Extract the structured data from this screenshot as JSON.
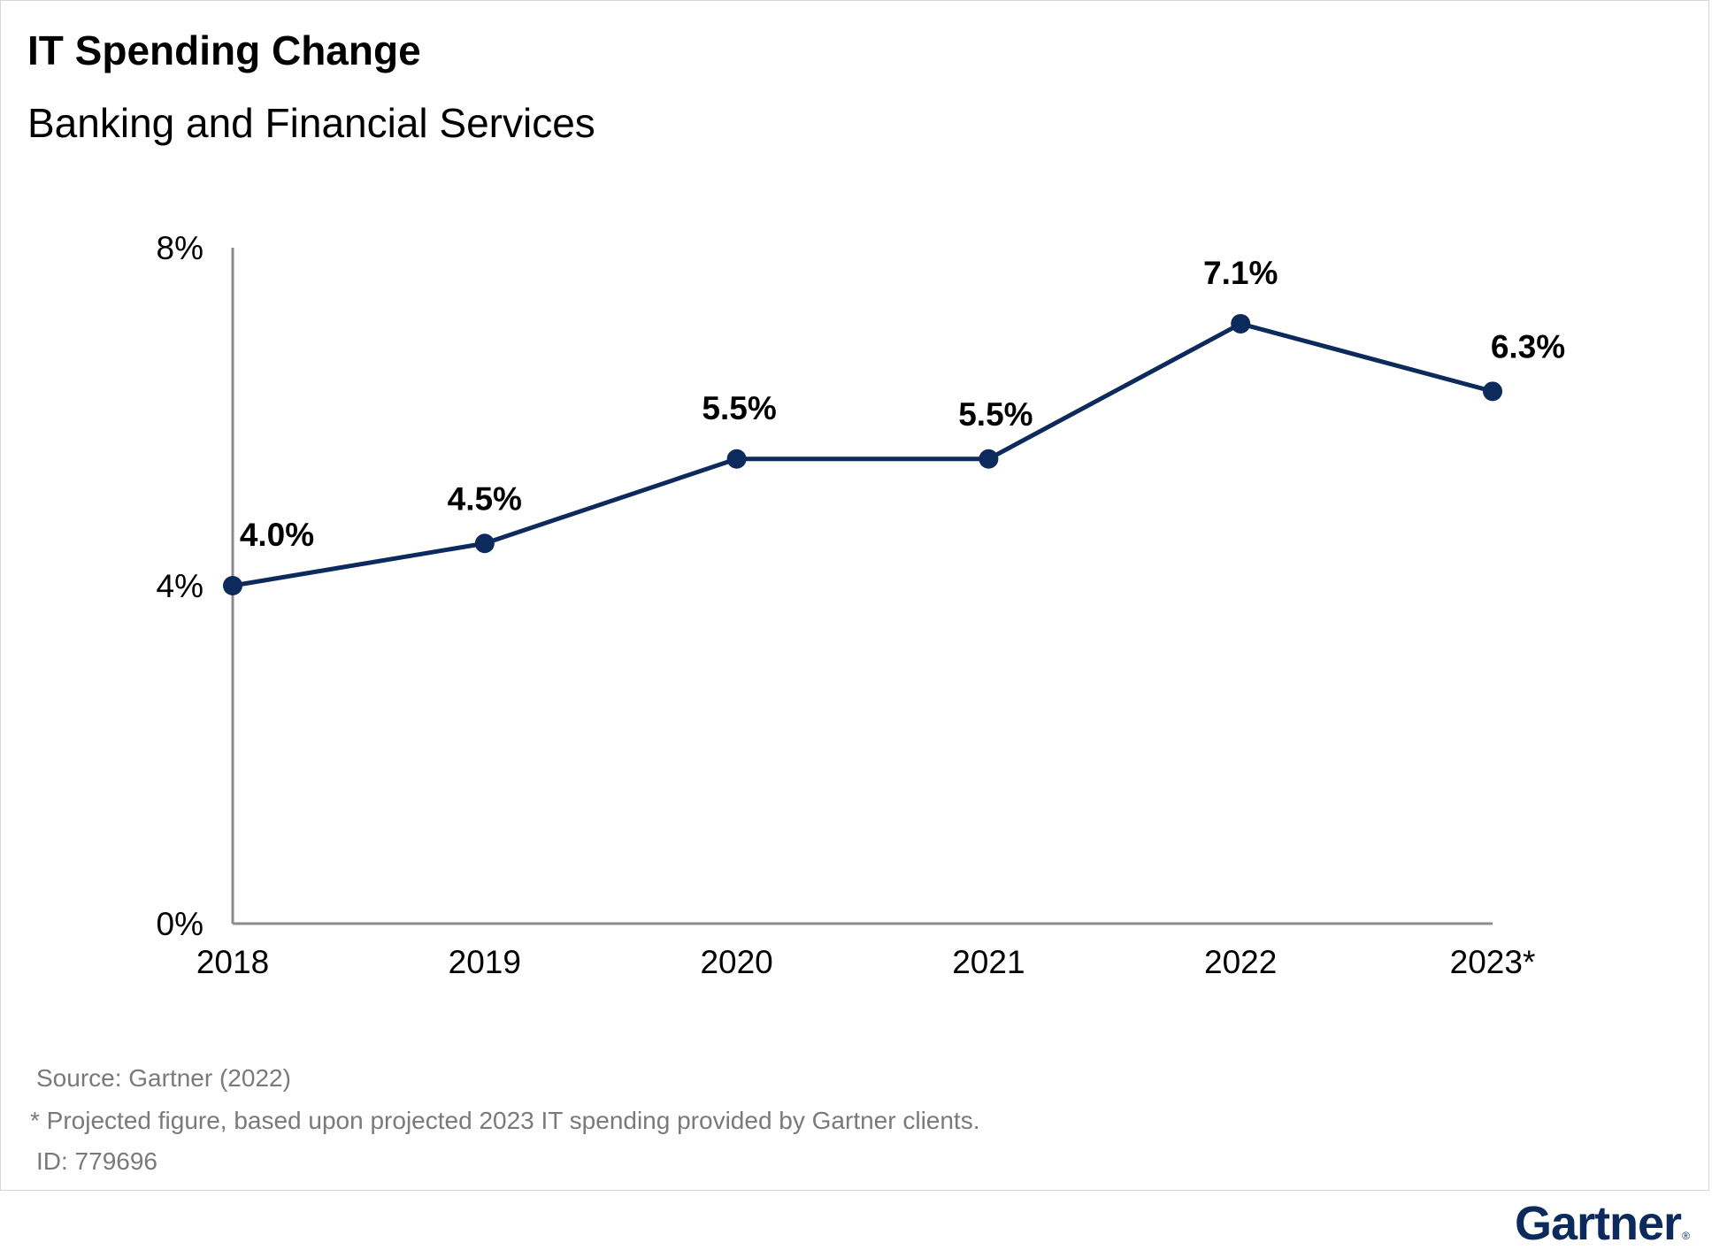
{
  "chart_data": {
    "type": "line",
    "title": "IT Spending Change",
    "subtitle": "Banking and Financial Services",
    "categories": [
      "2018",
      "2019",
      "2020",
      "2021",
      "2022",
      "2023*"
    ],
    "series": [
      {
        "values": [
          4.0,
          4.5,
          5.5,
          5.5,
          7.1,
          6.3
        ],
        "data_labels": [
          "4.0%",
          "4.5%",
          "5.5%",
          "5.5%",
          "7.1%",
          "6.3%"
        ],
        "color": "#0c2a5b"
      }
    ],
    "yticks": [
      0,
      4,
      8
    ],
    "ytick_labels": [
      "0%",
      "4%",
      "8%"
    ],
    "ylim": [
      0,
      8
    ],
    "grid": false,
    "xlabel": "",
    "ylabel": ""
  },
  "notes": {
    "source": "Source: Gartner (2022)",
    "footnote": "* Projected figure, based upon projected 2023 IT spending provided by Gartner clients.",
    "id": "ID: 779696"
  },
  "brand": {
    "logo_text": "Gartner",
    "logo_mark": "®",
    "color": "#0c2a5b"
  }
}
